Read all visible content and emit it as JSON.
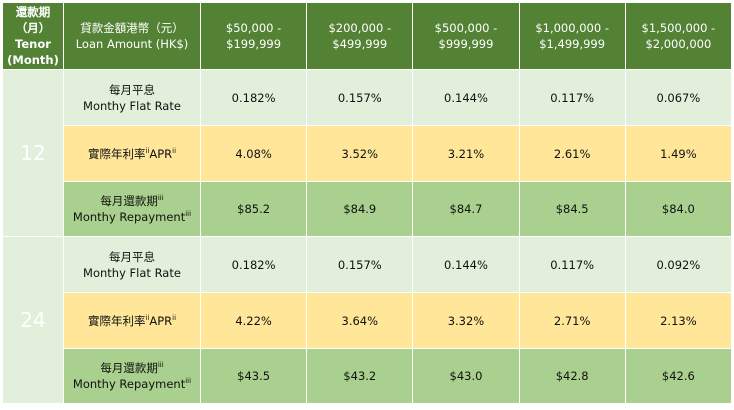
{
  "header": {
    "tenor": [
      "還款期",
      "（月）",
      "Tenor",
      "(Month)"
    ],
    "loan_amount": [
      "貸款金額港幣（元）",
      "Loan Amount (HK$)"
    ],
    "ranges": [
      [
        "$50,000 -",
        "$199,999"
      ],
      [
        "$200,000 -",
        "$499,999"
      ],
      [
        "$500,000 -",
        "$999,999"
      ],
      [
        "$1,000,000 -",
        "$1,499,999"
      ],
      [
        "$1,500,000 -",
        "$2,000,000"
      ]
    ]
  },
  "row_labels": {
    "flat_zh": "每月平息",
    "flat_en": "Monthy Flat Rate",
    "apr_zh": "實際年利率",
    "apr_sup": "ii",
    "apr_en": "APR",
    "rep_zh": "每月還款期",
    "rep_sup": "iii",
    "rep_en": "Monthy Repayment"
  },
  "groups": [
    {
      "tenor": "12",
      "flat": [
        "0.182%",
        "0.157%",
        "0.144%",
        "0.117%",
        "0.067%"
      ],
      "apr": [
        "4.08%",
        "3.52%",
        "3.21%",
        "2.61%",
        "1.49%"
      ],
      "repayment": [
        "$85.2",
        "$84.9",
        "$84.7",
        "$84.5",
        "$84.0"
      ]
    },
    {
      "tenor": "24",
      "flat": [
        "0.182%",
        "0.157%",
        "0.144%",
        "0.117%",
        "0.092%"
      ],
      "apr": [
        "4.22%",
        "3.64%",
        "3.32%",
        "2.71%",
        "2.13%"
      ],
      "repayment": [
        "$43.5",
        "$43.2",
        "$43.0",
        "$42.8",
        "$42.6"
      ]
    }
  ],
  "colors": {
    "header": "#548235",
    "flat": "#e2efda",
    "apr": "#ffe699",
    "repayment": "#a9d08e"
  }
}
